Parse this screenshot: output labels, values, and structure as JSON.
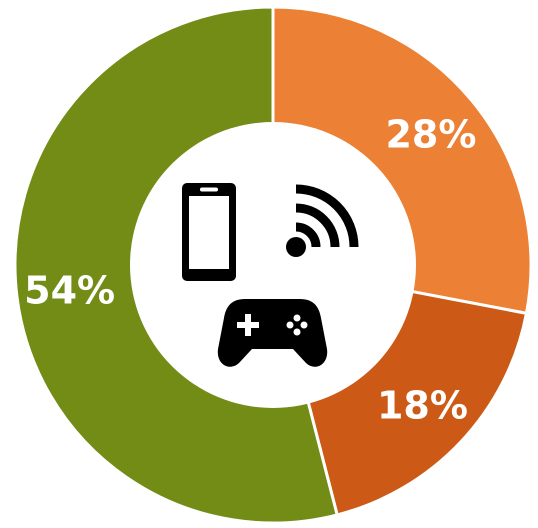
{
  "chart_data": {
    "type": "pie",
    "categories": [
      "",
      "",
      ""
    ],
    "values": [
      28,
      18,
      54
    ],
    "labels": [
      "28%",
      "18%",
      "54%"
    ],
    "colors": [
      "#EC8034",
      "#CC5A16",
      "#738C16"
    ],
    "center_icons": [
      "smartphone-icon",
      "wifi-signal-icon",
      "gamepad-icon"
    ],
    "legend": "none"
  }
}
